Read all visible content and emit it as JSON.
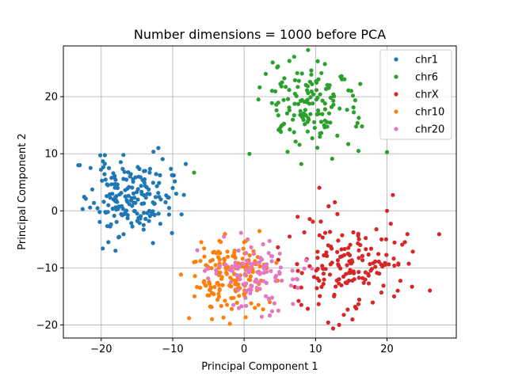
{
  "chart_data": {
    "type": "scatter",
    "title": "Number dimensions = 1000 before PCA",
    "xlabel": "Principal Component 1",
    "ylabel": "Principal Component 2",
    "xlim": [
      -25.3,
      29.7
    ],
    "ylim": [
      -22.3,
      28.9
    ],
    "xticks": [
      -20,
      -10,
      0,
      10,
      20
    ],
    "yticks": [
      -20,
      -10,
      0,
      10,
      20
    ],
    "grid": true,
    "legend_position": "top-right",
    "series": [
      {
        "name": "chr1",
        "color": "#1f77b4",
        "center": [
          -16,
          2.5
        ],
        "spread": [
          2.7,
          3.2
        ],
        "n": 180,
        "seed": 11,
        "points": [
          [
            -23,
            8
          ],
          [
            -22.6,
            0.3
          ],
          [
            -12,
            11
          ],
          [
            -10,
            4
          ],
          [
            -9.5,
            3
          ],
          [
            -10.5,
            0.5
          ],
          [
            -18,
            -7
          ],
          [
            -19,
            -5.5
          ],
          [
            -21.5,
            7.5
          ],
          [
            -11,
            1.5
          ]
        ]
      },
      {
        "name": "chr6",
        "color": "#2ca02c",
        "center": [
          9,
          18.5
        ],
        "spread": [
          3.2,
          3.8
        ],
        "n": 140,
        "seed": 23,
        "points": [
          [
            -7,
            6.7
          ],
          [
            20,
            10.3
          ],
          [
            7,
            27
          ],
          [
            4,
            26
          ],
          [
            2,
            19.5
          ],
          [
            16,
            10.5
          ],
          [
            8,
            8.2
          ],
          [
            16.5,
            14.8
          ],
          [
            15,
            21
          ],
          [
            13.5,
            23.5
          ]
        ]
      },
      {
        "name": "chrX",
        "color": "#d62728",
        "center": [
          15,
          -9
        ],
        "spread": [
          3.8,
          4.2
        ],
        "n": 160,
        "seed": 37,
        "points": [
          [
            27.3,
            -4.1
          ],
          [
            13.3,
            -20
          ],
          [
            12.7,
            1.5
          ],
          [
            20,
            0
          ],
          [
            23.5,
            -13.3
          ],
          [
            21,
            -15
          ],
          [
            8,
            -16.5
          ],
          [
            14.5,
            -17.3
          ],
          [
            22.5,
            -5.5
          ],
          [
            21.5,
            -14
          ]
        ]
      },
      {
        "name": "chr10",
        "color": "#ff7f0e",
        "center": [
          -2.3,
          -11.5
        ],
        "spread": [
          2.4,
          3.0
        ],
        "n": 160,
        "seed": 51,
        "points": [
          [
            -7.7,
            -18.8
          ],
          [
            -7,
            -9
          ],
          [
            -2,
            -19.8
          ],
          [
            -4.5,
            -19
          ],
          [
            2,
            -16.5
          ],
          [
            0,
            -5.5
          ],
          [
            -6,
            -5.5
          ],
          [
            1.5,
            -17
          ]
        ]
      },
      {
        "name": "chr20",
        "color": "#e377c2",
        "center": [
          1.5,
          -11
        ],
        "spread": [
          3.0,
          2.8
        ],
        "n": 100,
        "seed": 67,
        "points": [
          [
            4.8,
            -17.5
          ],
          [
            0.5,
            -5
          ],
          [
            -5.5,
            -10.5
          ],
          [
            6.8,
            -12
          ],
          [
            -1.5,
            -16.5
          ],
          [
            5,
            -7.5
          ],
          [
            7.5,
            -13.5
          ],
          [
            3.5,
            -15.5
          ]
        ]
      }
    ]
  }
}
